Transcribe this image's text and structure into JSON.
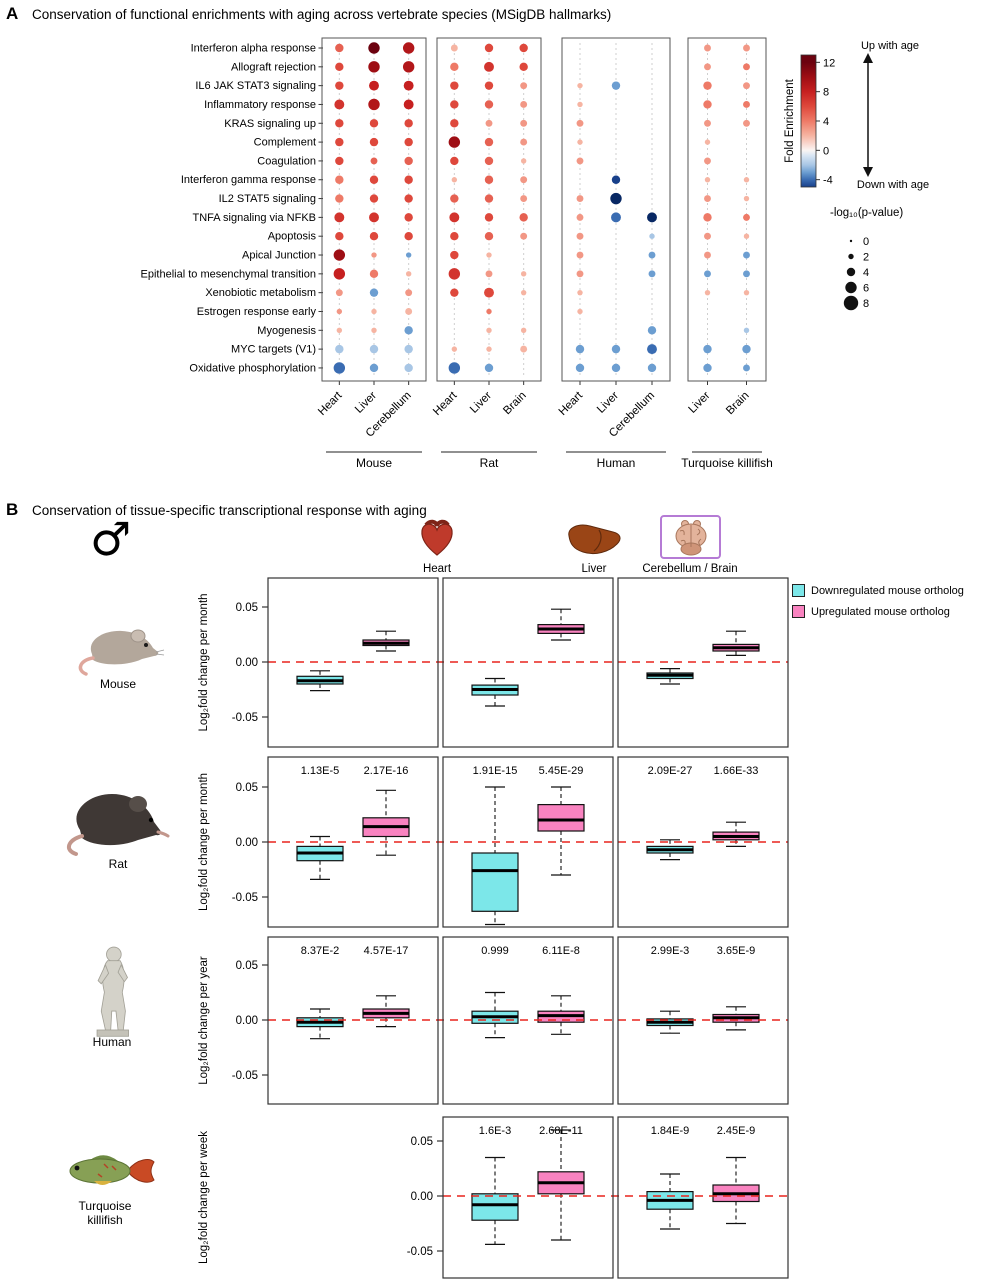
{
  "panel_a": {
    "label": "A",
    "title": "Conservation of functional enrichments with aging across vertebrate species (MSigDB hallmarks)",
    "pathways": [
      "Interferon alpha response",
      "Allograft rejection",
      "IL6 JAK STAT3 signaling",
      "Inflammatory response",
      "KRAS signaling up",
      "Complement",
      "Coagulation",
      "Interferon gamma response",
      "IL2 STAT5 signaling",
      "TNFA signaling via NFKB",
      "Apoptosis",
      "Apical Junction",
      "Epithelial to mesenchymal transition",
      "Xenobiotic metabolism",
      "Estrogen response early",
      "Myogenesis",
      "MYC targets (V1)",
      "Oxidative phosphorylation"
    ],
    "groups": [
      {
        "species": "Mouse",
        "tissues": [
          {
            "name": "Heart",
            "e": [
              5,
              6,
              6,
              7,
              6,
              6,
              6,
              4,
              4,
              7,
              6,
              10,
              8,
              3,
              3,
              2,
              -2,
              -4
            ],
            "p": [
              4,
              4,
              4,
              5,
              4,
              4,
              4,
              4,
              4,
              5,
              4,
              6,
              6,
              3,
              2,
              2,
              4,
              6
            ]
          },
          {
            "name": "Liver",
            "e": [
              12,
              10,
              8,
              9,
              6,
              6,
              5,
              6,
              6,
              7,
              6,
              3,
              4,
              -3,
              2,
              2,
              -2,
              -3
            ],
            "p": [
              6,
              6,
              5,
              6,
              4,
              4,
              3,
              4,
              4,
              5,
              4,
              2,
              4,
              4,
              2,
              2,
              4,
              4
            ]
          },
          {
            "name": "Cerebellum",
            "e": [
              9,
              9,
              8,
              8,
              6,
              6,
              5,
              6,
              6,
              6,
              6,
              -3,
              2,
              3,
              2,
              -3,
              -2,
              -2
            ],
            "p": [
              6,
              6,
              5,
              5,
              4,
              4,
              4,
              4,
              4,
              4,
              4,
              2,
              2,
              3,
              3,
              4,
              4,
              4
            ]
          }
        ]
      },
      {
        "species": "Rat",
        "tissues": [
          {
            "name": "Heart",
            "e": [
              2,
              4,
              6,
              6,
              6,
              10,
              6,
              2,
              5,
              7,
              6,
              6,
              7,
              6,
              null,
              null,
              2,
              -4
            ],
            "p": [
              3,
              4,
              4,
              4,
              4,
              6,
              4,
              2,
              4,
              5,
              4,
              4,
              6,
              4,
              null,
              null,
              2,
              6
            ]
          },
          {
            "name": "Liver",
            "e": [
              6,
              7,
              6,
              5,
              3,
              5,
              5,
              5,
              5,
              6,
              5,
              2,
              3,
              6,
              4,
              2,
              2,
              -3
            ],
            "p": [
              4,
              5,
              4,
              4,
              3,
              4,
              4,
              4,
              4,
              4,
              4,
              2,
              3,
              5,
              2,
              2,
              2,
              4
            ]
          },
          {
            "name": "Brain",
            "e": [
              6,
              6,
              3,
              3,
              3,
              3,
              2,
              3,
              3,
              5,
              3,
              null,
              2,
              2,
              null,
              2,
              2,
              null
            ],
            "p": [
              4,
              4,
              3,
              3,
              3,
              3,
              2,
              3,
              3,
              4,
              3,
              null,
              2,
              2,
              null,
              2,
              3,
              null
            ]
          }
        ]
      },
      {
        "species": "Human",
        "tissues": [
          {
            "name": "Heart",
            "e": [
              null,
              null,
              2,
              2,
              3,
              2,
              3,
              null,
              3,
              3,
              3,
              3,
              3,
              2,
              2,
              null,
              -3,
              -3
            ],
            "p": [
              null,
              null,
              2,
              2,
              3,
              2,
              3,
              null,
              3,
              3,
              3,
              3,
              3,
              2,
              2,
              null,
              4,
              4
            ]
          },
          {
            "name": "Liver",
            "e": [
              null,
              null,
              -3,
              null,
              null,
              null,
              null,
              -5,
              -6,
              -4,
              null,
              null,
              null,
              null,
              null,
              null,
              -3,
              -3
            ],
            "p": [
              null,
              null,
              4,
              null,
              null,
              null,
              null,
              4,
              6,
              5,
              null,
              null,
              null,
              null,
              null,
              null,
              4,
              4
            ]
          },
          {
            "name": "Cerebellum",
            "e": [
              null,
              null,
              null,
              null,
              null,
              null,
              null,
              null,
              null,
              -6,
              -2,
              -3,
              -3,
              null,
              null,
              -3,
              -4,
              -3
            ],
            "p": [
              null,
              null,
              null,
              null,
              null,
              null,
              null,
              null,
              null,
              5,
              2,
              3,
              3,
              null,
              null,
              4,
              5,
              4
            ]
          }
        ]
      },
      {
        "species": "Turquoise killifish",
        "tissues": [
          {
            "name": "Liver",
            "e": [
              3,
              3,
              4,
              4,
              3,
              2,
              3,
              2,
              3,
              4,
              3,
              3,
              -3,
              2,
              null,
              null,
              -3,
              -3
            ],
            "p": [
              3,
              3,
              4,
              4,
              3,
              2,
              3,
              2,
              3,
              4,
              3,
              3,
              3,
              2,
              null,
              null,
              4,
              4
            ]
          },
          {
            "name": "Brain",
            "e": [
              3,
              4,
              3,
              4,
              3,
              null,
              null,
              2,
              2,
              4,
              2,
              -3,
              -3,
              2,
              null,
              -2,
              -3,
              -3
            ],
            "p": [
              3,
              3,
              3,
              3,
              3,
              null,
              null,
              2,
              2,
              3,
              2,
              3,
              3,
              2,
              null,
              2,
              4,
              3
            ]
          }
        ]
      }
    ],
    "colorbar": {
      "title": "Fold Enrichment",
      "ticks": [
        12,
        8,
        4,
        0,
        -4
      ],
      "top_label": "Up with age",
      "bottom_label": "Down with age"
    },
    "size_legend": {
      "title": "-log₁₀(p-value)",
      "values": [
        0,
        2,
        4,
        6,
        8
      ]
    }
  },
  "panel_b": {
    "label": "B",
    "title": "Conservation of tissue-specific transcriptional response with aging",
    "sex_symbol": "♂",
    "columns": [
      "Heart",
      "Liver",
      "Cerebellum / Brain"
    ],
    "legend": [
      {
        "label": "Downregulated mouse ortholog",
        "color": "#7ce7e9"
      },
      {
        "label": "Upregulated mouse ortholog",
        "color": "#f983c0"
      }
    ],
    "zero_line_color": "#e8231d",
    "ytick_labels": [
      "0.05",
      "0.00",
      "-0.05"
    ],
    "ytick_values": [
      0.05,
      0,
      -0.05
    ],
    "rows": [
      {
        "species": "Mouse",
        "species_label_lines": [
          "Mouse"
        ],
        "ylabel": "Log₂fold change per month",
        "cells": [
          {
            "pvals": null,
            "down": {
              "lo": -0.026,
              "q1": -0.02,
              "med": -0.017,
              "q3": -0.013,
              "hi": -0.008
            },
            "up": {
              "lo": 0.01,
              "q1": 0.015,
              "med": 0.017,
              "q3": 0.02,
              "hi": 0.028
            }
          },
          {
            "pvals": null,
            "down": {
              "lo": -0.04,
              "q1": -0.03,
              "med": -0.025,
              "q3": -0.021,
              "hi": -0.015
            },
            "up": {
              "lo": 0.02,
              "q1": 0.026,
              "med": 0.03,
              "q3": 0.034,
              "hi": 0.048
            }
          },
          {
            "pvals": null,
            "down": {
              "lo": -0.02,
              "q1": -0.015,
              "med": -0.012,
              "q3": -0.01,
              "hi": -0.006
            },
            "up": {
              "lo": 0.006,
              "q1": 0.01,
              "med": 0.013,
              "q3": 0.016,
              "hi": 0.028
            }
          }
        ]
      },
      {
        "species": "Rat",
        "species_label_lines": [
          "Rat"
        ],
        "ylabel": "Log₂fold change per month",
        "cells": [
          {
            "pvals": [
              "1.13E-5",
              "2.17E-16"
            ],
            "down": {
              "lo": -0.034,
              "q1": -0.017,
              "med": -0.01,
              "q3": -0.004,
              "hi": 0.005
            },
            "up": {
              "lo": -0.012,
              "q1": 0.005,
              "med": 0.014,
              "q3": 0.022,
              "hi": 0.047
            }
          },
          {
            "pvals": [
              "1.91E-15",
              "5.45E-29"
            ],
            "down": {
              "lo": -0.075,
              "q1": -0.063,
              "med": -0.026,
              "q3": -0.01,
              "hi": 0.05
            },
            "up": {
              "lo": -0.03,
              "q1": 0.01,
              "med": 0.02,
              "q3": 0.034,
              "hi": 0.05
            }
          },
          {
            "pvals": [
              "2.09E-27",
              "1.66E-33"
            ],
            "down": {
              "lo": -0.016,
              "q1": -0.01,
              "med": -0.007,
              "q3": -0.004,
              "hi": 0.002
            },
            "up": {
              "lo": -0.004,
              "q1": 0.002,
              "med": 0.005,
              "q3": 0.009,
              "hi": 0.018
            }
          }
        ]
      },
      {
        "species": "Human",
        "species_label_lines": [
          "Human"
        ],
        "ylabel": "Log₂fold change per year",
        "cells": [
          {
            "pvals": [
              "8.37E-2",
              "4.57E-17"
            ],
            "down": {
              "lo": -0.017,
              "q1": -0.006,
              "med": -0.002,
              "q3": 0.002,
              "hi": 0.01
            },
            "up": {
              "lo": -0.006,
              "q1": 0.002,
              "med": 0.006,
              "q3": 0.01,
              "hi": 0.022
            }
          },
          {
            "pvals": [
              "0.999",
              "6.11E-8"
            ],
            "down": {
              "lo": -0.016,
              "q1": -0.003,
              "med": 0.003,
              "q3": 0.008,
              "hi": 0.025
            },
            "up": {
              "lo": -0.013,
              "q1": -0.002,
              "med": 0.004,
              "q3": 0.008,
              "hi": 0.022
            }
          },
          {
            "pvals": [
              "2.99E-3",
              "3.65E-9"
            ],
            "down": {
              "lo": -0.012,
              "q1": -0.005,
              "med": -0.002,
              "q3": 0.001,
              "hi": 0.008
            },
            "up": {
              "lo": -0.009,
              "q1": -0.002,
              "med": 0.002,
              "q3": 0.005,
              "hi": 0.012
            }
          }
        ]
      },
      {
        "species": "Turquoise killifish",
        "species_label_lines": [
          "Turquoise",
          "killifish"
        ],
        "ylabel": "Log₂fold change per week",
        "cells": [
          null,
          {
            "pvals": [
              "1.6E-3",
              "2.68E-11"
            ],
            "down": {
              "lo": -0.044,
              "q1": -0.022,
              "med": -0.008,
              "q3": 0.002,
              "hi": 0.035
            },
            "up": {
              "lo": -0.04,
              "q1": 0.002,
              "med": 0.012,
              "q3": 0.022,
              "hi": 0.06
            }
          },
          {
            "pvals": [
              "1.84E-9",
              "2.45E-9"
            ],
            "down": {
              "lo": -0.03,
              "q1": -0.012,
              "med": -0.004,
              "q3": 0.004,
              "hi": 0.02
            },
            "up": {
              "lo": -0.025,
              "q1": -0.005,
              "med": 0.002,
              "q3": 0.01,
              "hi": 0.035
            }
          }
        ]
      }
    ]
  }
}
